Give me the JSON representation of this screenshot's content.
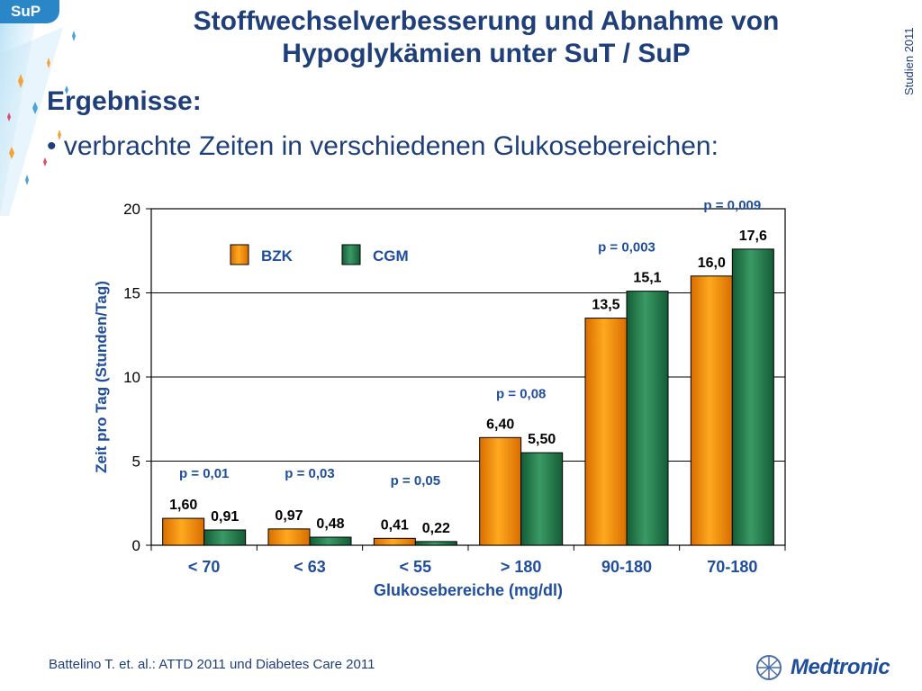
{
  "header": {
    "tag": "SuP",
    "title_line1": "Stoffwechselverbesserung und Abnahme von",
    "title_line2": "Hypoglykämien unter SuT / SuP",
    "side_label": "Studien 2011"
  },
  "content": {
    "heading": "Ergebnisse:",
    "bullet": "• verbrachte Zeiten in verschiedenen Glukosebereichen:"
  },
  "colors": {
    "title": "#1f3f7a",
    "bzk": "#f08a00",
    "cgm": "#1f7a4a",
    "pvalue": "#1f4e9c"
  },
  "chart_data": {
    "type": "bar",
    "categories": [
      "< 70",
      "< 63",
      "< 55",
      "> 180",
      "90-180",
      "70-180"
    ],
    "series": [
      {
        "name": "BZK",
        "values": [
          1.6,
          0.97,
          0.41,
          6.4,
          13.5,
          16.0
        ],
        "labels": [
          "1,60",
          "0,97",
          "0,41",
          "6,40",
          "13,5",
          "16,0"
        ]
      },
      {
        "name": "CGM",
        "values": [
          0.91,
          0.48,
          0.22,
          5.5,
          15.1,
          17.6
        ],
        "labels": [
          "0,91",
          "0,48",
          "0,22",
          "5,50",
          "15,1",
          "17,6"
        ]
      }
    ],
    "p_values": [
      "p = 0,01",
      "p = 0,03",
      "p = 0,05",
      "p = 0,08",
      "p = 0,003",
      "p = 0,009"
    ],
    "xlabel": "Glukosebereiche (mg/dl)",
    "ylabel": "Zeit pro Tag (Stunden/Tag)",
    "ylim": [
      0,
      20
    ],
    "yticks": [
      0,
      5,
      10,
      15,
      20
    ],
    "grid": true,
    "legend": "top-left"
  },
  "footer": {
    "reference": "Battelino T. et. al.: ATTD 2011 und Diabetes Care 2011",
    "logo_text": "Medtronic"
  }
}
